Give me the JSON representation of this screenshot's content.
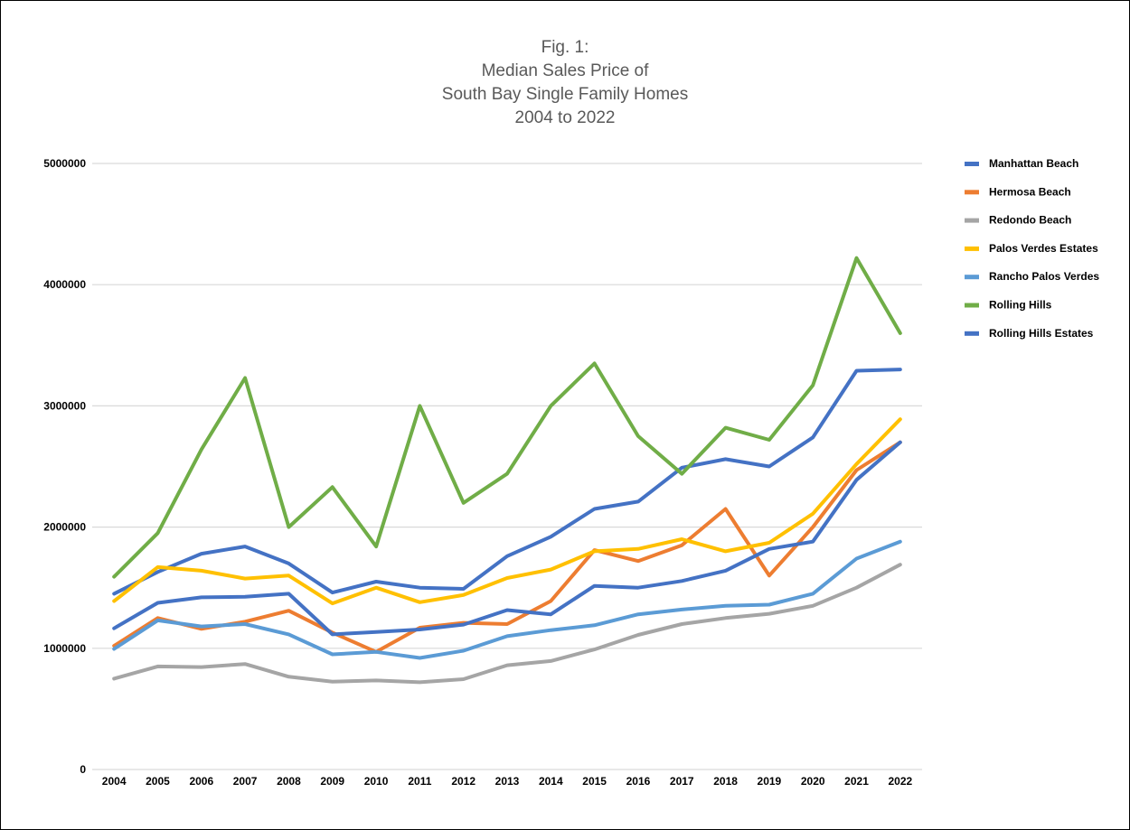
{
  "chart_data": {
    "type": "line",
    "title_lines": [
      "Fig. 1:",
      "Median Sales Price of",
      "South Bay Single Family Homes",
      "2004 to 2022"
    ],
    "xlabel": "",
    "ylabel": "",
    "ylim": [
      0,
      5000000
    ],
    "yticks": [
      0,
      1000000,
      2000000,
      3000000,
      4000000,
      5000000
    ],
    "grid": true,
    "legend_position": "right",
    "categories": [
      "2004",
      "2005",
      "2006",
      "2007",
      "2008",
      "2009",
      "2010",
      "2011",
      "2012",
      "2013",
      "2014",
      "2015",
      "2016",
      "2017",
      "2018",
      "2019",
      "2020",
      "2021",
      "2022"
    ],
    "series": [
      {
        "name": "Manhattan Beach",
        "color": "#4472C4",
        "values": [
          1450000,
          1630000,
          1780000,
          1840000,
          1700000,
          1460000,
          1550000,
          1500000,
          1490000,
          1760000,
          1920000,
          2150000,
          2210000,
          2490000,
          2560000,
          2500000,
          2740000,
          3290000,
          3300000
        ]
      },
      {
        "name": "Hermosa Beach",
        "color": "#ED7D31",
        "values": [
          1020000,
          1250000,
          1160000,
          1220000,
          1310000,
          1130000,
          970000,
          1170000,
          1210000,
          1200000,
          1390000,
          1810000,
          1720000,
          1850000,
          2150000,
          1600000,
          2000000,
          2470000,
          2700000
        ]
      },
      {
        "name": "Redondo Beach",
        "color": "#A5A5A5",
        "values": [
          750000,
          850000,
          845000,
          870000,
          765000,
          725000,
          735000,
          720000,
          745000,
          860000,
          895000,
          990000,
          1110000,
          1200000,
          1250000,
          1285000,
          1350000,
          1500000,
          1690000
        ]
      },
      {
        "name": "Palos Verdes Estates",
        "color": "#FFC000",
        "values": [
          1390000,
          1670000,
          1640000,
          1575000,
          1600000,
          1370000,
          1500000,
          1380000,
          1440000,
          1580000,
          1650000,
          1800000,
          1820000,
          1900000,
          1800000,
          1870000,
          2110000,
          2520000,
          2890000
        ]
      },
      {
        "name": "Rancho Palos Verdes",
        "color": "#5B9BD5",
        "values": [
          995000,
          1230000,
          1180000,
          1200000,
          1115000,
          950000,
          970000,
          920000,
          980000,
          1100000,
          1150000,
          1190000,
          1280000,
          1320000,
          1350000,
          1360000,
          1450000,
          1740000,
          1880000
        ]
      },
      {
        "name": "Rolling Hills",
        "color": "#70AD47",
        "values": [
          1590000,
          1950000,
          2640000,
          3230000,
          2000000,
          2330000,
          1840000,
          3000000,
          2200000,
          2440000,
          3000000,
          3350000,
          2750000,
          2440000,
          2820000,
          2720000,
          3170000,
          4220000,
          3600000
        ]
      },
      {
        "name": "Rolling Hills Estates",
        "color": "#4472C4",
        "values": [
          1165000,
          1375000,
          1420000,
          1425000,
          1450000,
          1115000,
          1135000,
          1155000,
          1195000,
          1315000,
          1280000,
          1515000,
          1500000,
          1555000,
          1640000,
          1820000,
          1880000,
          2390000,
          2700000
        ]
      }
    ]
  }
}
